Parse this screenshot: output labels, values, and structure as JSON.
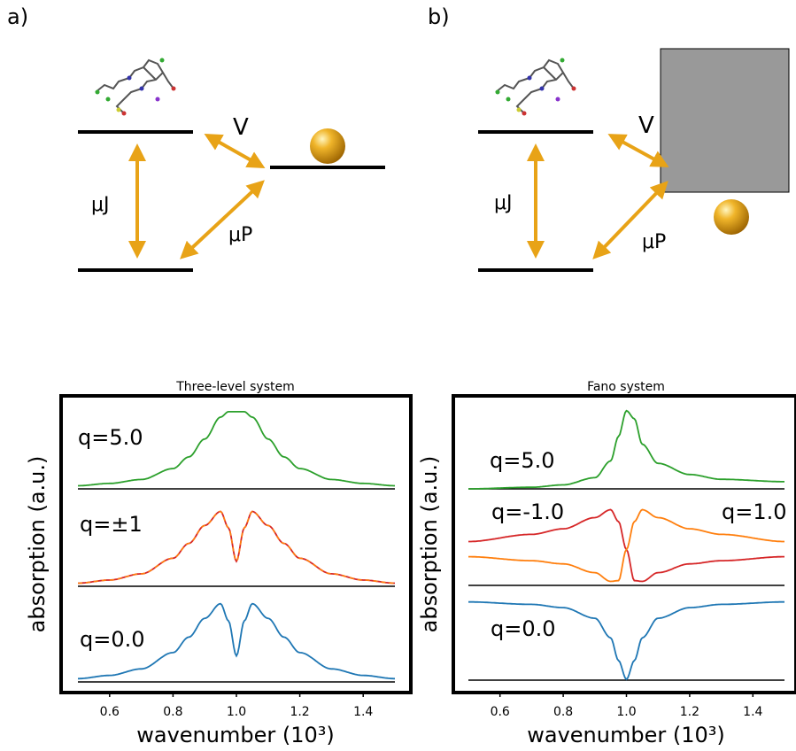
{
  "panels": {
    "a": {
      "label": "a)",
      "coupling_label": "V",
      "dipole_j_label": "μJ",
      "dipole_p_label": "μP"
    },
    "b": {
      "label": "b)",
      "coupling_label": "V",
      "dipole_j_label": "μJ",
      "dipole_p_label": "μP"
    }
  },
  "colors": {
    "arrow": "#E8A317",
    "level": "#000000",
    "continuum": "#999999",
    "green": "#2ca02c",
    "red": "#d62728",
    "orange": "#ff7f0e",
    "blue": "#1f77b4"
  },
  "chart_data": [
    {
      "type": "line",
      "title": "Three-level system",
      "xlabel": "wavenumber (10³)",
      "ylabel": "absorption (a.u.)",
      "xlim": [
        0.5,
        1.5
      ],
      "xticks": [
        "0.6",
        "0.8",
        "1.0",
        "1.2",
        "1.4"
      ],
      "xtick_values": [
        0.6,
        0.8,
        1.0,
        1.2,
        1.4
      ],
      "series": [
        {
          "name": "q=5.0",
          "color": "green",
          "x": [
            0.5,
            0.6,
            0.7,
            0.8,
            0.85,
            0.9,
            0.95,
            0.975,
            1.0,
            1.025,
            1.05,
            1.1,
            1.15,
            1.2,
            1.3,
            1.4,
            1.5
          ],
          "y": [
            0.04,
            0.07,
            0.12,
            0.26,
            0.41,
            0.64,
            0.92,
            0.99,
            0.99,
            0.99,
            0.92,
            0.64,
            0.41,
            0.26,
            0.12,
            0.07,
            0.04
          ]
        },
        {
          "name": "q=±1",
          "color": "red",
          "x": [
            0.5,
            0.6,
            0.7,
            0.8,
            0.85,
            0.9,
            0.95,
            0.975,
            1.0,
            1.025,
            1.05,
            1.1,
            1.15,
            1.2,
            1.3,
            1.4,
            1.5
          ],
          "y": [
            0.04,
            0.08,
            0.16,
            0.36,
            0.55,
            0.78,
            0.96,
            0.75,
            0.32,
            0.75,
            0.96,
            0.78,
            0.55,
            0.36,
            0.16,
            0.08,
            0.04
          ]
        },
        {
          "name": "q=0.0",
          "color": "blue",
          "x": [
            0.5,
            0.6,
            0.7,
            0.8,
            0.85,
            0.9,
            0.95,
            0.975,
            1.0,
            1.025,
            1.05,
            1.1,
            1.15,
            1.2,
            1.3,
            1.4,
            1.5
          ],
          "y": [
            0.04,
            0.08,
            0.16,
            0.36,
            0.55,
            0.78,
            0.96,
            0.75,
            0.32,
            0.75,
            0.96,
            0.78,
            0.55,
            0.36,
            0.16,
            0.08,
            0.04
          ]
        }
      ]
    },
    {
      "type": "line",
      "title": "Fano system",
      "xlabel": "wavenumber (10³)",
      "ylabel": "absorption (a.u.)",
      "xlim": [
        0.5,
        1.5
      ],
      "xticks": [
        "0.6",
        "0.8",
        "1.0",
        "1.2",
        "1.4"
      ],
      "xtick_values": [
        0.6,
        0.8,
        1.0,
        1.2,
        1.4
      ],
      "series": [
        {
          "name": "q=5.0",
          "color": "green",
          "x": [
            0.5,
            0.7,
            0.8,
            0.9,
            0.95,
            0.975,
            1.0,
            1.025,
            1.05,
            1.1,
            1.2,
            1.3,
            1.5
          ],
          "y": [
            0.0,
            0.02,
            0.05,
            0.14,
            0.35,
            0.66,
            0.98,
            0.88,
            0.56,
            0.32,
            0.18,
            0.12,
            0.09
          ]
        },
        {
          "name": "q=-1.0",
          "color": "red",
          "x": [
            0.5,
            0.7,
            0.8,
            0.9,
            0.95,
            0.975,
            1.0,
            1.025,
            1.05,
            1.1,
            1.2,
            1.3,
            1.5
          ],
          "y": [
            0.55,
            0.64,
            0.71,
            0.85,
            0.95,
            0.8,
            0.45,
            0.06,
            0.05,
            0.16,
            0.27,
            0.31,
            0.36
          ]
        },
        {
          "name": "q=1.0",
          "color": "orange",
          "x": [
            0.5,
            0.7,
            0.8,
            0.9,
            0.95,
            0.975,
            1.0,
            1.025,
            1.05,
            1.1,
            1.2,
            1.3,
            1.5
          ],
          "y": [
            0.36,
            0.31,
            0.27,
            0.16,
            0.05,
            0.06,
            0.45,
            0.8,
            0.95,
            0.85,
            0.71,
            0.64,
            0.55
          ]
        },
        {
          "name": "q=0.0",
          "color": "blue",
          "x": [
            0.5,
            0.7,
            0.8,
            0.9,
            0.95,
            0.975,
            1.0,
            1.025,
            1.05,
            1.1,
            1.2,
            1.3,
            1.5
          ],
          "y": [
            0.96,
            0.93,
            0.89,
            0.76,
            0.52,
            0.24,
            0.01,
            0.24,
            0.52,
            0.76,
            0.89,
            0.93,
            0.96
          ]
        }
      ]
    }
  ]
}
